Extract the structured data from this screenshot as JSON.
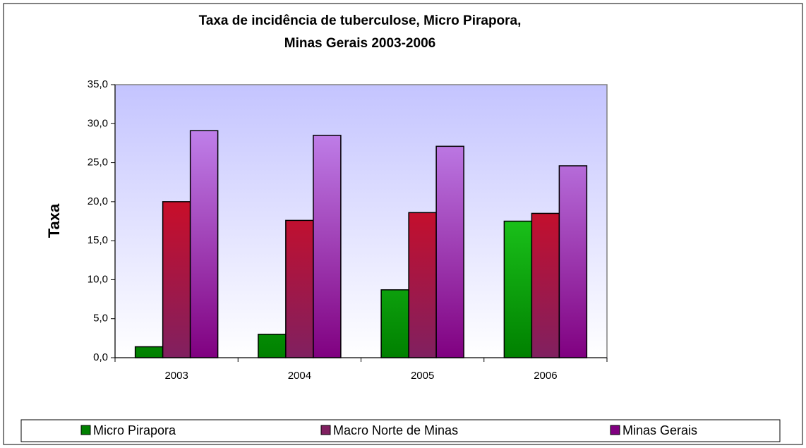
{
  "chart_data": {
    "type": "bar",
    "title": [
      "Taxa de incidência  de tuberculose, Micro Pirapora,",
      "Minas Gerais 2003-2006"
    ],
    "y_label": "Taxa",
    "categories": [
      "2003",
      "2004",
      "2005",
      "2006"
    ],
    "series": [
      {
        "name": "Micro Pirapora",
        "color": "#33ff33",
        "color_bottom": "#008000",
        "values": [
          1.4,
          3.0,
          8.7,
          17.5
        ]
      },
      {
        "name": "Macro Norte de Minas",
        "color": "#ff0000",
        "color_bottom": "#802060",
        "values": [
          20.0,
          17.6,
          18.6,
          18.5
        ]
      },
      {
        "name": "Minas Gerais",
        "color": "#cc99ff",
        "color_bottom": "#800080",
        "values": [
          29.1,
          28.5,
          27.1,
          24.6
        ]
      }
    ],
    "ylim": [
      0,
      35
    ],
    "yticks": [
      {
        "value": 0,
        "label": "0,0"
      },
      {
        "value": 5,
        "label": "5,0"
      },
      {
        "value": 10,
        "label": "10,0"
      },
      {
        "value": 15,
        "label": "15,0"
      },
      {
        "value": 20,
        "label": "20,0"
      },
      {
        "value": 25,
        "label": "25,0"
      },
      {
        "value": 30,
        "label": "30,0"
      },
      {
        "value": 35,
        "label": "35,0"
      }
    ],
    "legend": "bottom"
  }
}
